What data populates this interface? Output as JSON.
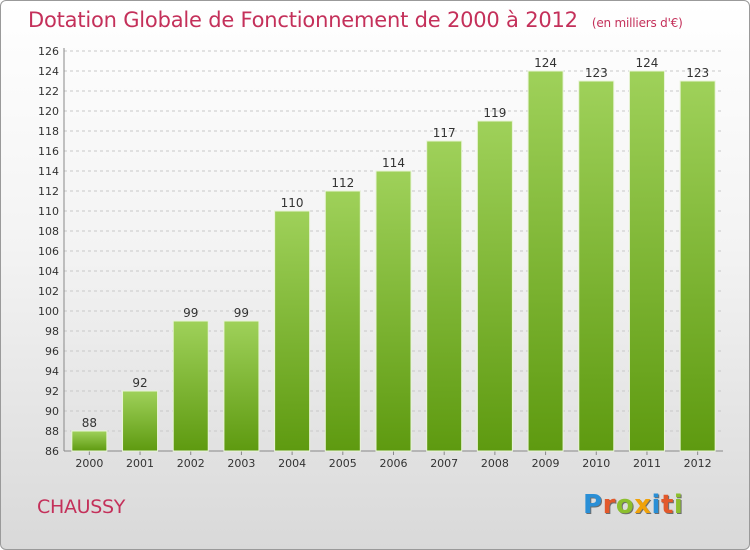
{
  "header": {
    "title": "Dotation Globale de Fonctionnement de 2000 à 2012",
    "subtitle": "(en milliers d'€)"
  },
  "footer": {
    "place": "CHAUSSY",
    "logo_text": "Proxiti",
    "logo_colors": [
      "#2a8fd6",
      "#e2592b",
      "#8cbf2e",
      "#f0a20b",
      "#2a8fd6",
      "#e2592b",
      "#8cbf2e"
    ]
  },
  "colors": {
    "bar_top": "#9fd15a",
    "bar_bottom": "#5e9a10",
    "bar_edge": "#e8f4d6",
    "accent": "#c4305a",
    "grid": "#c8c8c8",
    "text": "#333333"
  },
  "chart_data": {
    "type": "bar",
    "title": "Dotation Globale de Fonctionnement de 2000 à 2012",
    "subtitle": "(en milliers d'€)",
    "xlabel": "",
    "ylabel": "",
    "categories": [
      "2000",
      "2001",
      "2002",
      "2003",
      "2004",
      "2005",
      "2006",
      "2007",
      "2008",
      "2009",
      "2010",
      "2011",
      "2012"
    ],
    "values": [
      88,
      92,
      99,
      99,
      110,
      112,
      114,
      117,
      119,
      124,
      123,
      124,
      123
    ],
    "ylim": [
      86,
      126
    ],
    "yticks": [
      86,
      88,
      90,
      92,
      94,
      96,
      98,
      100,
      102,
      104,
      106,
      108,
      110,
      112,
      114,
      116,
      118,
      120,
      122,
      124,
      126
    ],
    "grid": true,
    "legend": "none",
    "data_labels": true
  }
}
